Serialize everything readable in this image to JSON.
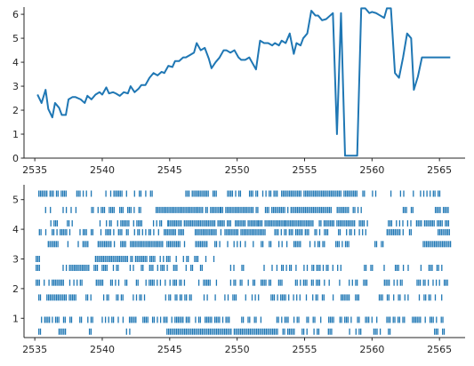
{
  "chart_data": [
    {
      "type": "line",
      "title": "",
      "xlabel": "",
      "ylabel": "",
      "xlim": [
        2534.2,
        2566.9
      ],
      "ylim": [
        0,
        6.3
      ],
      "xticks": [
        2535,
        2540,
        2545,
        2550,
        2555,
        2560,
        2565
      ],
      "yticks": [
        0,
        1,
        2,
        3,
        4,
        5,
        6
      ],
      "grid": false,
      "color": "#1f77b4",
      "series": [
        {
          "x": [
            2535.2,
            2535.5,
            2535.8,
            2536.0,
            2536.3,
            2536.5,
            2536.8,
            2537.0,
            2537.3,
            2537.5,
            2537.8,
            2538.0,
            2538.4,
            2538.7,
            2538.9,
            2539.2,
            2539.5,
            2539.8,
            2540.0,
            2540.3,
            2540.5,
            2540.8,
            2541.0,
            2541.3,
            2541.6,
            2541.9,
            2542.1,
            2542.4,
            2542.7,
            2542.9,
            2543.2,
            2543.5,
            2543.8,
            2544.1,
            2544.4,
            2544.6,
            2544.9,
            2545.2,
            2545.4,
            2545.7,
            2546.0,
            2546.2,
            2546.5,
            2546.8,
            2547.0,
            2547.3,
            2547.6,
            2547.9,
            2548.1,
            2548.4,
            2548.7,
            2549.0,
            2549.2,
            2549.5,
            2549.8,
            2550.1,
            2550.3,
            2550.6,
            2550.9,
            2551.1,
            2551.4,
            2551.7,
            2552.0,
            2552.3,
            2552.6,
            2552.8,
            2553.1,
            2553.3,
            2553.6,
            2553.9,
            2554.2,
            2554.4,
            2554.7,
            2554.9,
            2555.2,
            2555.5,
            2555.8,
            2556.0,
            2556.3,
            2556.6,
            2556.9,
            2557.1,
            2557.4,
            2557.7,
            2558.0,
            2558.3,
            2558.6,
            2558.9,
            2559.2,
            2559.5,
            2559.8,
            2560.0,
            2560.3,
            2560.6,
            2560.9,
            2561.1,
            2561.4,
            2561.7,
            2562.0,
            2562.3,
            2562.6,
            2562.9,
            2563.1,
            2563.4,
            2563.7,
            2564.0,
            2564.3,
            2564.6,
            2564.8,
            2565.1,
            2565.4,
            2565.8
          ],
          "y": [
            2.65,
            2.3,
            2.85,
            2.05,
            1.7,
            2.3,
            2.1,
            1.8,
            1.8,
            2.45,
            2.55,
            2.55,
            2.45,
            2.3,
            2.6,
            2.45,
            2.65,
            2.75,
            2.65,
            2.95,
            2.7,
            2.75,
            2.7,
            2.6,
            2.75,
            2.7,
            3.0,
            2.75,
            2.9,
            3.05,
            3.05,
            3.35,
            3.55,
            3.45,
            3.6,
            3.55,
            3.85,
            3.8,
            4.05,
            4.05,
            4.2,
            4.2,
            4.3,
            4.4,
            4.8,
            4.5,
            4.6,
            4.15,
            3.75,
            4.0,
            4.2,
            4.5,
            4.5,
            4.4,
            4.5,
            4.2,
            4.1,
            4.1,
            4.2,
            4.0,
            3.7,
            4.9,
            4.8,
            4.8,
            4.7,
            4.8,
            4.7,
            4.9,
            4.8,
            5.2,
            4.35,
            4.8,
            4.7,
            5.0,
            5.2,
            6.15,
            5.95,
            5.95,
            5.75,
            5.8,
            5.95,
            6.05,
            1.0,
            6.05,
            0.1,
            0.1,
            0.1,
            0.1,
            6.25,
            6.25,
            6.05,
            6.1,
            6.05,
            5.95,
            5.85,
            6.25,
            6.25,
            3.55,
            3.35,
            4.2,
            5.2,
            5.0,
            2.85,
            3.4,
            4.2,
            4.2,
            4.2,
            4.2,
            4.2,
            4.2,
            4.2,
            4.2
          ]
        }
      ]
    },
    {
      "type": "scatter",
      "marker": "vertical-tick",
      "title": "",
      "xlabel": "",
      "ylabel": "",
      "xlim": [
        2534.2,
        2566.9
      ],
      "ylim": [
        0.35,
        5.5
      ],
      "xticks": [
        2535,
        2540,
        2545,
        2550,
        2555,
        2560,
        2565
      ],
      "yticks": [
        1,
        2,
        3,
        4,
        5
      ],
      "grid": false,
      "color": "#1f77b4",
      "rows": [
        {
          "y": 5.2,
          "segments": [
            [
              2535.3,
              2537.4,
              0.55
            ],
            [
              2538.0,
              2539.3,
              0.45
            ],
            [
              2539.8,
              2541.5,
              0.5
            ],
            [
              2541.8,
              2543.7,
              0.55
            ],
            [
              2546.2,
              2548.6,
              0.9
            ],
            [
              2549.3,
              2550.3,
              0.7
            ],
            [
              2550.8,
              2551.6,
              0.6
            ],
            [
              2551.9,
              2553.0,
              0.7
            ],
            [
              2553.3,
              2558.9,
              0.92
            ],
            [
              2559.2,
              2559.6,
              0.5
            ],
            [
              2559.8,
              2560.5,
              0.6
            ],
            [
              2561.4,
              2563.1,
              0.5
            ],
            [
              2563.6,
              2565.1,
              0.45
            ]
          ]
        },
        {
          "y": 4.65,
          "segments": [
            [
              2535.8,
              2536.6,
              0.5
            ],
            [
              2537.1,
              2538.4,
              0.45
            ],
            [
              2539.1,
              2540.9,
              0.5
            ],
            [
              2541.3,
              2543.0,
              0.55
            ],
            [
              2544.0,
              2548.8,
              0.9
            ],
            [
              2548.8,
              2551.6,
              0.95
            ],
            [
              2552.1,
              2557.0,
              0.95
            ],
            [
              2557.3,
              2559.5,
              0.55
            ],
            [
              2562.2,
              2563.1,
              0.5
            ],
            [
              2564.7,
              2565.7,
              0.95
            ]
          ]
        },
        {
          "y": 4.2,
          "segments": [
            [
              2535.6,
              2536.8,
              0.45
            ],
            [
              2537.3,
              2538.6,
              0.4
            ],
            [
              2539.6,
              2543.1,
              0.5
            ],
            [
              2543.8,
              2544.9,
              0.55
            ],
            [
              2544.9,
              2548.8,
              0.95
            ],
            [
              2548.8,
              2551.6,
              0.95
            ],
            [
              2551.6,
              2553.6,
              0.85
            ],
            [
              2553.6,
              2559.7,
              0.9
            ],
            [
              2561.1,
              2562.9,
              0.55
            ],
            [
              2563.3,
              2565.8,
              0.8
            ]
          ]
        },
        {
          "y": 3.9,
          "segments": [
            [
              2535.1,
              2537.6,
              0.5
            ],
            [
              2538.0,
              2539.6,
              0.45
            ],
            [
              2539.9,
              2544.2,
              0.5
            ],
            [
              2544.6,
              2546.1,
              0.65
            ],
            [
              2546.9,
              2548.8,
              0.95
            ],
            [
              2549.1,
              2552.1,
              0.95
            ],
            [
              2552.8,
              2556.9,
              0.7
            ],
            [
              2557.4,
              2559.6,
              0.6
            ],
            [
              2561.0,
              2563.1,
              0.5
            ],
            [
              2564.9,
              2565.8,
              0.95
            ]
          ]
        },
        {
          "y": 3.5,
          "segments": [
            [
              2536.0,
              2536.8,
              0.9
            ],
            [
              2537.1,
              2537.6,
              0.6
            ],
            [
              2538.1,
              2539.3,
              0.5
            ],
            [
              2539.7,
              2540.7,
              0.7
            ],
            [
              2540.9,
              2541.8,
              0.6
            ],
            [
              2542.1,
              2544.5,
              0.95
            ],
            [
              2544.8,
              2545.8,
              0.9
            ],
            [
              2546.1,
              2548.9,
              0.55
            ],
            [
              2549.3,
              2553.7,
              0.5
            ],
            [
              2554.1,
              2556.6,
              0.6
            ],
            [
              2557.2,
              2558.4,
              0.5
            ],
            [
              2560.1,
              2561.0,
              0.45
            ],
            [
              2563.8,
              2565.9,
              0.95
            ]
          ]
        },
        {
          "y": 3.0,
          "segments": [
            [
              2535.1,
              2535.4,
              0.9
            ],
            [
              2539.5,
              2543.9,
              0.95
            ],
            [
              2544.3,
              2545.6,
              0.5
            ],
            [
              2545.9,
              2548.3,
              0.5
            ]
          ]
        },
        {
          "y": 2.7,
          "segments": [
            [
              2535.1,
              2535.4,
              0.9
            ],
            [
              2537.1,
              2539.1,
              0.9
            ],
            [
              2539.4,
              2541.2,
              0.5
            ],
            [
              2541.6,
              2543.1,
              0.5
            ],
            [
              2543.4,
              2545.6,
              0.55
            ],
            [
              2546.1,
              2547.6,
              0.5
            ],
            [
              2549.4,
              2551.2,
              0.45
            ],
            [
              2552.0,
              2553.0,
              0.45
            ],
            [
              2553.3,
              2557.8,
              0.45
            ],
            [
              2559.2,
              2560.2,
              0.4
            ],
            [
              2560.9,
              2565.3,
              0.35
            ]
          ]
        },
        {
          "y": 2.2,
          "segments": [
            [
              2535.1,
              2537.6,
              0.6
            ],
            [
              2537.9,
              2541.4,
              0.55
            ],
            [
              2541.7,
              2548.7,
              0.5
            ],
            [
              2549.4,
              2553.4,
              0.45
            ],
            [
              2554.1,
              2556.9,
              0.45
            ],
            [
              2557.6,
              2560.0,
              0.45
            ],
            [
              2560.8,
              2562.4,
              0.4
            ],
            [
              2563.1,
              2565.7,
              0.6
            ]
          ]
        },
        {
          "y": 1.7,
          "segments": [
            [
              2535.3,
              2535.6,
              0.6
            ],
            [
              2535.9,
              2538.1,
              0.95
            ],
            [
              2538.8,
              2541.6,
              0.5
            ],
            [
              2542.3,
              2543.2,
              0.45
            ],
            [
              2544.7,
              2551.6,
              0.45
            ],
            [
              2552.4,
              2556.5,
              0.4
            ],
            [
              2557.0,
              2559.3,
              0.4
            ],
            [
              2560.3,
              2565.6,
              0.45
            ]
          ]
        },
        {
          "y": 0.95,
          "segments": [
            [
              2535.5,
              2536.1,
              0.9
            ],
            [
              2536.3,
              2537.9,
              0.55
            ],
            [
              2538.1,
              2542.6,
              0.55
            ],
            [
              2542.9,
              2546.5,
              0.6
            ],
            [
              2546.8,
              2549.7,
              0.55
            ],
            [
              2550.1,
              2553.9,
              0.5
            ],
            [
              2554.1,
              2555.9,
              0.5
            ],
            [
              2556.2,
              2560.8,
              0.55
            ],
            [
              2561.1,
              2565.7,
              0.6
            ]
          ]
        },
        {
          "y": 0.55,
          "segments": [
            [
              2535.3,
              2535.5,
              0.7
            ],
            [
              2536.8,
              2537.3,
              0.6
            ],
            [
              2538.1,
              2539.2,
              0.3
            ],
            [
              2541.8,
              2542.4,
              0.5
            ],
            [
              2544.8,
              2553.1,
              0.95
            ],
            [
              2553.4,
              2555.2,
              0.6
            ],
            [
              2555.7,
              2557.1,
              0.55
            ],
            [
              2558.1,
              2559.4,
              0.45
            ],
            [
              2559.9,
              2560.9,
              0.45
            ],
            [
              2561.1,
              2561.4,
              0.6
            ],
            [
              2564.4,
              2565.4,
              0.4
            ]
          ]
        }
      ]
    }
  ]
}
